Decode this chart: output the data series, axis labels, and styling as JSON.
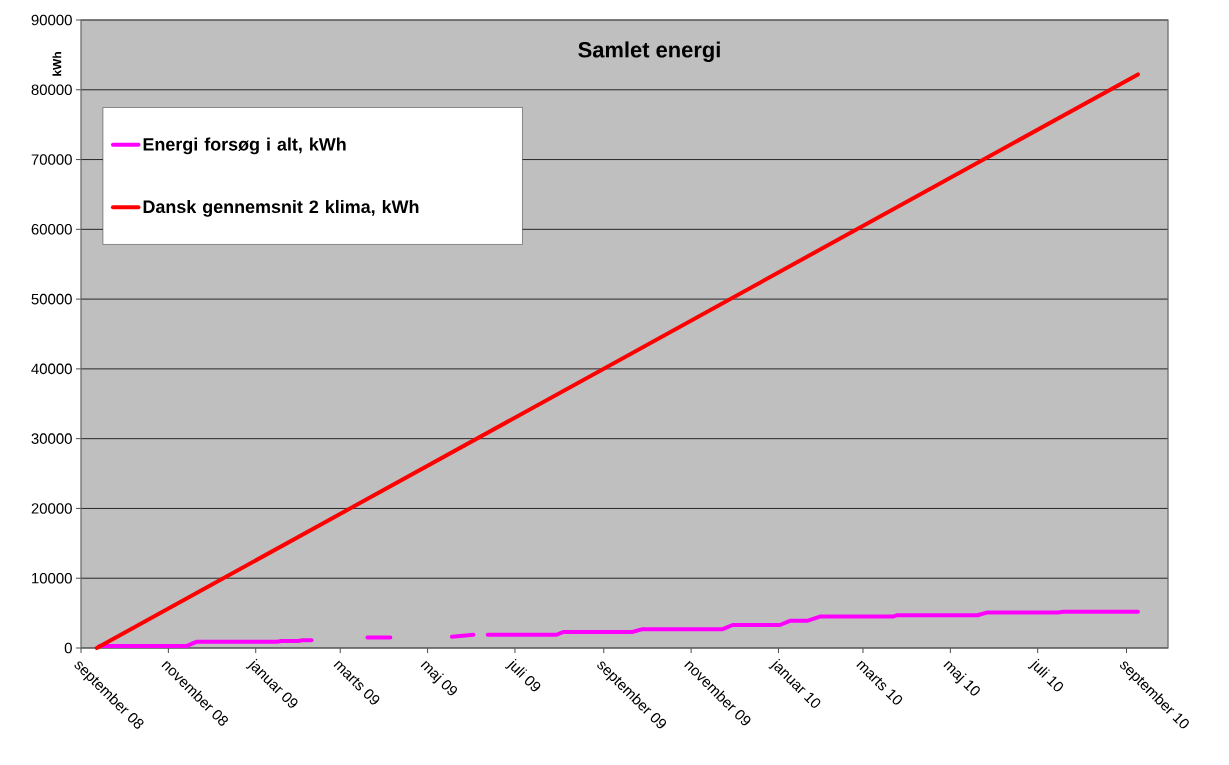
{
  "chart_data": {
    "type": "line",
    "title": "Samlet energi",
    "ylabel": "kWh",
    "xlim": [
      "2008-09-01",
      "2010-09-30"
    ],
    "ylim": [
      0,
      90000
    ],
    "xticks": [
      {
        "value": "2008-09-01",
        "label": "september 08"
      },
      {
        "value": "2008-11-01",
        "label": "november 08"
      },
      {
        "value": "2009-01-01",
        "label": "januar 09"
      },
      {
        "value": "2009-03-01",
        "label": "marts 09"
      },
      {
        "value": "2009-05-01",
        "label": "maj 09"
      },
      {
        "value": "2009-07-01",
        "label": "juli 09"
      },
      {
        "value": "2009-09-01",
        "label": "september 09"
      },
      {
        "value": "2009-11-01",
        "label": "november 09"
      },
      {
        "value": "2010-01-01",
        "label": "januar 10"
      },
      {
        "value": "2010-03-01",
        "label": "marts 10"
      },
      {
        "value": "2010-05-01",
        "label": "maj 10"
      },
      {
        "value": "2010-07-01",
        "label": "juli 10"
      },
      {
        "value": "2010-09-01",
        "label": "september 10"
      }
    ],
    "yticks": [
      0,
      10000,
      20000,
      30000,
      40000,
      50000,
      60000,
      70000,
      80000,
      90000
    ],
    "grid": "y",
    "legend": "top left",
    "series": [
      {
        "name": "Energi forsøg i alt, kWh",
        "color": "#ff00ff",
        "x": [
          "2008-09-14",
          "2008-10-31",
          "2008-11-14",
          "2008-11-21",
          "2009-01-16",
          "2009-01-19",
          "2009-01-31",
          "2009-02-02",
          "2009-02-09",
          "2009-03-01",
          "2009-03-20",
          "2009-04-05",
          "2009-04-25",
          "2009-05-18",
          "2009-06-02",
          "2009-06-07",
          "2009-06-12",
          "2009-07-30",
          "2009-08-04",
          "2009-09-21",
          "2009-09-28",
          "2009-11-23",
          "2009-11-30",
          "2010-01-02",
          "2010-01-09",
          "2010-01-21",
          "2010-01-30",
          "2010-03-22",
          "2010-03-25",
          "2010-05-20",
          "2010-05-27",
          "2010-07-15",
          "2010-07-19",
          "2010-09-09"
        ],
        "values": [
          300,
          300,
          300,
          900,
          900,
          1000,
          1000,
          1100,
          1100,
          null,
          1500,
          1500,
          null,
          1600,
          1900,
          null,
          1900,
          1900,
          2300,
          2300,
          2700,
          2700,
          3300,
          3300,
          3900,
          3900,
          4500,
          4500,
          4700,
          4700,
          5100,
          5100,
          5200,
          5200
        ]
      },
      {
        "name": "Dansk gennemsnit 2 klima, kWh",
        "color": "#ff0000",
        "x": [
          "2008-09-12",
          "2010-09-09"
        ],
        "values": [
          0,
          82200
        ]
      }
    ]
  }
}
